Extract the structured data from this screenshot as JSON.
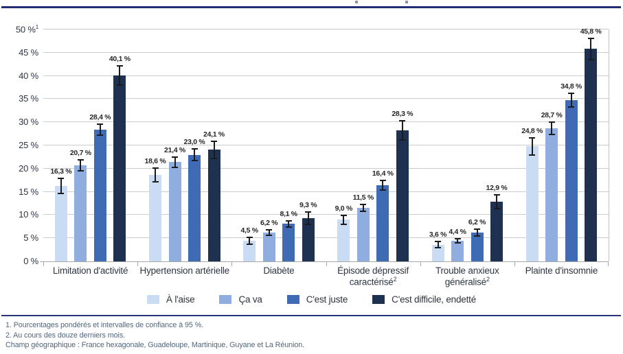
{
  "accent_colors": {
    "top_rule": "#202f74",
    "bottom_rule": "#25347b",
    "grid": "#cbcbcb",
    "axis": "#a8a8a8",
    "error_bar": "#1b1b1b",
    "footnote_text": "#51657a"
  },
  "chart_data": {
    "type": "bar",
    "title": "",
    "xlabel": "",
    "ylabel": "",
    "ylim": [
      0,
      50
    ],
    "grid": true,
    "legend_position": "bottom",
    "axis_note_marker": "1",
    "yticks": [
      "50 %",
      "45 %",
      "40 %",
      "35 %",
      "30 %",
      "25 %",
      "20 %",
      "15 %",
      "10 %",
      "5 %",
      "0 %"
    ],
    "categories": [
      "Limitation d'activité",
      "Hypertension artérielle",
      "Diabète",
      "Épisode dépressif caractérisé",
      "Trouble anxieux généralisé",
      "Plainte d'insomnie"
    ],
    "category_sups": [
      "",
      "",
      "",
      "2",
      "2",
      ""
    ],
    "series": [
      {
        "name": "À l'aise",
        "color": "#c9dcf4",
        "values": [
          16.3,
          18.6,
          4.5,
          9.0,
          3.6,
          24.8
        ],
        "ci": [
          1.8,
          1.6,
          0.9,
          1.1,
          0.8,
          2.0
        ],
        "labels": [
          "16,3 %",
          "18,6 %",
          "4,5 %",
          "9,0 %",
          "3,6 %",
          "24,8 %"
        ]
      },
      {
        "name": "Ça va",
        "color": "#8fadde",
        "values": [
          20.7,
          21.4,
          6.2,
          11.5,
          4.4,
          28.7
        ],
        "ci": [
          1.3,
          1.3,
          0.7,
          0.9,
          0.6,
          1.5
        ],
        "labels": [
          "20,7 %",
          "21,4 %",
          "6,2 %",
          "11,5 %",
          "4,4 %",
          "28,7 %"
        ]
      },
      {
        "name": "C'est juste",
        "color": "#3e6bb3",
        "values": [
          28.4,
          23.0,
          8.1,
          16.4,
          6.2,
          34.8
        ],
        "ci": [
          1.4,
          1.4,
          0.8,
          1.2,
          0.9,
          1.6
        ],
        "labels": [
          "28,4 %",
          "23,0 %",
          "8,1 %",
          "16,4 %",
          "6,2 %",
          "34,8 %"
        ]
      },
      {
        "name": "C'est difficile, endetté",
        "color": "#1f3150",
        "values": [
          40.1,
          24.1,
          9.3,
          28.3,
          12.9,
          45.8
        ],
        "ci": [
          2.2,
          2.0,
          1.5,
          2.2,
          1.6,
          2.4
        ],
        "labels": [
          "40,1 %",
          "24,1 %",
          "9,3 %",
          "28,3 %",
          "12,9 %",
          "45,8 %"
        ]
      }
    ]
  },
  "footnotes": {
    "line1": "1. Pourcentages pondérés et intervalles de confiance à 95 %.",
    "line2": "2. Au cours des douze derniers mois.",
    "line3": "Champ géographique : France hexagonale, Guadeloupe, Martinique, Guyane et La Réunion."
  }
}
